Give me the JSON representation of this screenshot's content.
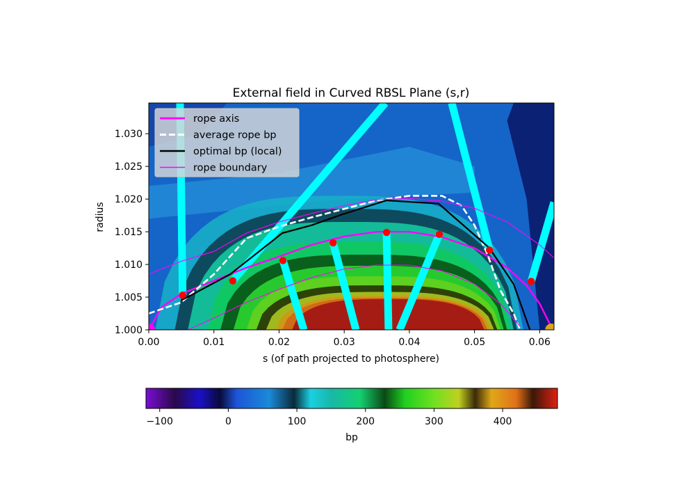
{
  "chart_data": [
    {
      "type": "heatmap",
      "title": "External field in Curved RBSL Plane (s,r)",
      "xlabel": "s (of path projected to photosphere)",
      "ylabel": "radius",
      "xlim": [
        0.0,
        0.0622
      ],
      "ylim": [
        1.0,
        1.0347
      ],
      "xticks": [
        "0.00",
        "0.01",
        "0.02",
        "0.03",
        "0.04",
        "0.05",
        "0.06"
      ],
      "xtick_values": [
        0.0,
        0.01,
        0.02,
        0.03,
        0.04,
        0.05,
        0.06
      ],
      "yticks": [
        "1.000",
        "1.005",
        "1.010",
        "1.015",
        "1.020",
        "1.025",
        "1.030"
      ],
      "ytick_values": [
        1.0,
        1.005,
        1.01,
        1.015,
        1.02,
        1.025,
        1.03
      ],
      "colormap": "nipy_spectral (banded)",
      "field_range": [
        -120,
        480
      ],
      "legend_position": "upper-left",
      "series": [
        {
          "name": "rope axis",
          "color": "#ff00ff",
          "style": "solid-thick",
          "x": [
            0.0,
            0.002,
            0.005,
            0.01,
            0.015,
            0.02,
            0.025,
            0.03,
            0.035,
            0.04,
            0.045,
            0.05,
            0.055,
            0.058,
            0.06,
            0.062
          ],
          "y": [
            1.0,
            1.0035,
            1.0055,
            1.0075,
            1.0095,
            1.0112,
            1.013,
            1.0143,
            1.015,
            1.015,
            1.0142,
            1.0125,
            1.0095,
            1.0068,
            1.004,
            1.0
          ]
        },
        {
          "name": "average rope bp",
          "color": "#ffffff",
          "style": "dashed",
          "x": [
            0.0,
            0.005,
            0.01,
            0.015,
            0.02,
            0.025,
            0.03,
            0.035,
            0.04,
            0.045,
            0.048,
            0.05,
            0.052,
            0.054,
            0.056,
            0.057
          ],
          "y": [
            1.0025,
            1.0042,
            1.0085,
            1.014,
            1.0158,
            1.0172,
            1.0185,
            1.0198,
            1.0205,
            1.0205,
            1.019,
            1.016,
            1.0115,
            1.006,
            1.0025,
            1.0
          ]
        },
        {
          "name": "optimal bp (local)",
          "color": "#000000",
          "style": "solid",
          "x": [
            0.005,
            0.0125,
            0.0205,
            0.025,
            0.0295,
            0.0365,
            0.0445,
            0.0523,
            0.056,
            0.0585
          ],
          "y": [
            1.0045,
            1.0085,
            1.0148,
            1.016,
            1.0176,
            1.0198,
            1.0193,
            1.0125,
            1.007,
            1.0
          ]
        },
        {
          "name": "rope boundary",
          "color": "#ff00ff",
          "style": "solid-thin",
          "x": [
            0.0,
            0.005,
            0.01,
            0.015,
            0.02,
            0.025,
            0.03,
            0.035,
            0.04,
            0.045,
            0.05,
            0.055,
            0.06,
            0.0622
          ],
          "y": [
            1.0085,
            1.0105,
            1.012,
            1.0148,
            1.0165,
            1.0178,
            1.019,
            1.0199,
            1.0201,
            1.0197,
            1.0186,
            1.0165,
            1.013,
            1.011
          ]
        },
        {
          "name": "",
          "color": "#ff00ff",
          "style": "solid-thin",
          "x": [
            0.006,
            0.01,
            0.015,
            0.02,
            0.025,
            0.03,
            0.035,
            0.04,
            0.045,
            0.05,
            0.054,
            0.057
          ],
          "y": [
            1.0,
            1.0018,
            1.0042,
            1.0062,
            1.008,
            1.0093,
            1.0099,
            1.0099,
            1.009,
            1.007,
            1.004,
            1.0005
          ]
        }
      ],
      "markers": {
        "color": "#ff0000",
        "x": [
          0.0052,
          0.0129,
          0.0206,
          0.0283,
          0.0365,
          0.0446,
          0.0523,
          0.0587
        ],
        "y": [
          1.0053,
          1.0075,
          1.0106,
          1.0133,
          1.0149,
          1.0146,
          1.0122,
          1.0074
        ]
      },
      "endpoints": [
        {
          "x": 0.0,
          "y": 1.0,
          "color": "#ff00ff"
        },
        {
          "x": 0.0618,
          "y": 1.0,
          "color": "#daa520"
        }
      ],
      "field_lines": {
        "color": "#00ffff",
        "segments": [
          {
            "x": [
              0.0048,
              0.0052
            ],
            "y": [
              1.0347,
              1.0053
            ]
          },
          {
            "x": 0.0,
            "y": 0.0,
            "from": [
              0.0129,
              1.0075
            ],
            "to": [
              0.0363,
              1.0347
            ]
          },
          {
            "from": [
              0.0206,
              1.0106
            ],
            "to": [
              0.0238,
              1.0
            ]
          },
          {
            "from": [
              0.0283,
              1.0133
            ],
            "to": [
              0.0318,
              1.0
            ]
          },
          {
            "from": [
              0.0365,
              1.0149
            ],
            "to": [
              0.0368,
              1.0
            ]
          },
          {
            "from": [
              0.0446,
              1.0146
            ],
            "to": [
              0.0385,
              1.0
            ]
          },
          {
            "from": [
              0.0523,
              1.0122
            ],
            "to": [
              0.0465,
              1.0347
            ]
          },
          {
            "from": [
              0.0587,
              1.0074
            ],
            "to": [
              0.0622,
              1.0195
            ]
          }
        ]
      },
      "legend": [
        {
          "label": "rope axis",
          "color": "#ff00ff",
          "style": "solid-thick"
        },
        {
          "label": "average rope bp",
          "color": "#ffffff",
          "style": "dashed"
        },
        {
          "label": "optimal bp (local)",
          "color": "#000000",
          "style": "solid"
        },
        {
          "label": "rope boundary",
          "color": "#ff00ff",
          "style": "solid-thin"
        }
      ]
    },
    {
      "type": "colorbar",
      "label": "bp",
      "range": [
        -120,
        480
      ],
      "ticks": [
        "−100",
        "0",
        "100",
        "200",
        "300",
        "400"
      ],
      "tick_values": [
        -100,
        0,
        100,
        200,
        300,
        400
      ]
    }
  ]
}
